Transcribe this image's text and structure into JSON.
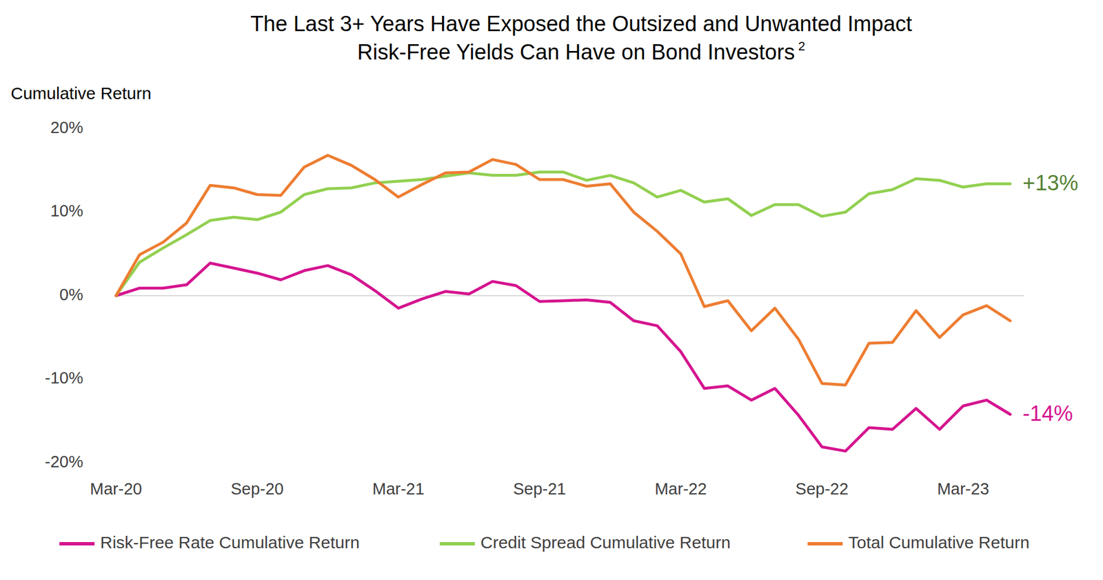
{
  "chart_data": {
    "type": "line",
    "title": [
      "The Last 3+ Years Have Exposed the Outsized and Unwanted Impact",
      "Risk-Free Yields Can Have on Bond Investors"
    ],
    "title_note": "2",
    "y_label": "Cumulative Return",
    "categories": [
      "Mar-20",
      null,
      null,
      null,
      null,
      null,
      "Sep-20",
      null,
      null,
      null,
      null,
      null,
      "Mar-21",
      null,
      null,
      null,
      null,
      null,
      "Sep-21",
      null,
      null,
      null,
      null,
      null,
      "Mar-22",
      null,
      null,
      null,
      null,
      null,
      "Sep-22",
      null,
      null,
      null,
      null,
      null,
      "Mar-23",
      null,
      null
    ],
    "ylim": [
      -20,
      20
    ],
    "yticks": [
      {
        "value": -20,
        "label": "-20%"
      },
      {
        "value": -10,
        "label": "-10%"
      },
      {
        "value": 0,
        "label": "0%"
      },
      {
        "value": 10,
        "label": "10%"
      },
      {
        "value": 20,
        "label": "20%"
      }
    ],
    "grid": false,
    "legend": "bottom",
    "series": [
      {
        "name": "Risk-Free Rate Cumulative Return",
        "color": "#d5148f",
        "end_label": "-14%",
        "values": [
          0,
          0.9,
          0.9,
          1.3,
          3.9,
          3.3,
          2.7,
          1.9,
          3.0,
          3.6,
          2.5,
          0.6,
          -1.5,
          -0.4,
          0.5,
          0.2,
          1.7,
          1.2,
          -0.7,
          -0.6,
          -0.5,
          -0.8,
          -3.0,
          -3.6,
          -6.7,
          -11.1,
          -10.8,
          -12.5,
          -11.1,
          -14.3,
          -18.1,
          -18.6,
          -15.8,
          -16.0,
          -13.5,
          -16.0,
          -13.2,
          -12.5,
          -14.2
        ]
      },
      {
        "name": "Credit Spread Cumulative Return",
        "color": "#92d050",
        "end_label": "+13%",
        "values": [
          0,
          4.0,
          5.7,
          7.3,
          9.0,
          9.4,
          9.1,
          10.0,
          12.1,
          12.8,
          12.9,
          13.5,
          13.7,
          13.9,
          14.3,
          14.7,
          14.4,
          14.4,
          14.8,
          14.8,
          13.8,
          14.4,
          13.5,
          11.8,
          12.6,
          11.2,
          11.6,
          9.6,
          10.9,
          10.9,
          9.5,
          10.0,
          12.2,
          12.7,
          14.0,
          13.8,
          13.0,
          13.4,
          13.4
        ]
      },
      {
        "name": "Total Cumulative Return",
        "color": "#ed7d31",
        "values": [
          0,
          4.9,
          6.4,
          8.7,
          13.2,
          12.9,
          12.1,
          12.0,
          15.4,
          16.8,
          15.6,
          13.9,
          11.8,
          13.3,
          14.7,
          14.8,
          16.3,
          15.7,
          13.9,
          13.9,
          13.1,
          13.4,
          10.0,
          7.7,
          5.0,
          -1.3,
          -0.6,
          -4.2,
          -1.5,
          -5.2,
          -10.5,
          -10.7,
          -5.7,
          -5.6,
          -1.8,
          -5.0,
          -2.3,
          -1.2,
          -3.0
        ]
      }
    ]
  }
}
